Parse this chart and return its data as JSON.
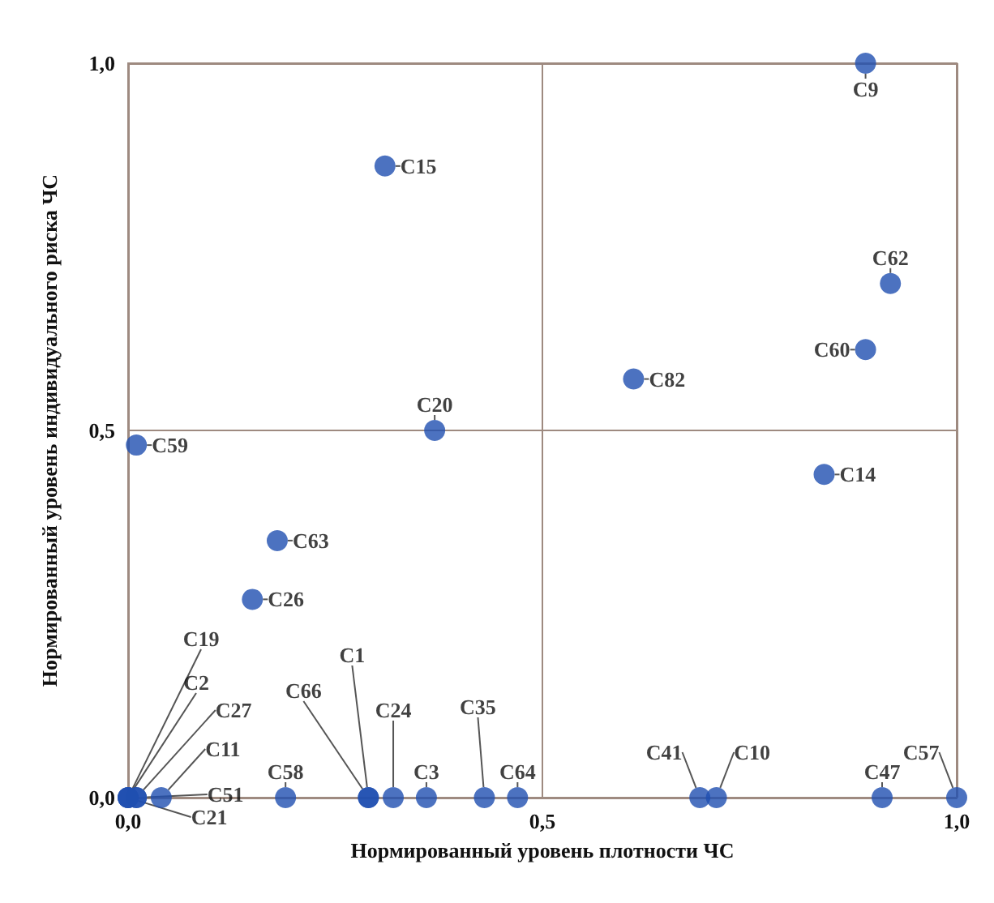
{
  "chart_data": {
    "type": "scatter",
    "xlabel": "Нормированный уровень плотности ЧС",
    "ylabel": "Нормированный уровень индивидуального риска ЧС",
    "xlim": [
      0,
      1
    ],
    "ylim": [
      0,
      1
    ],
    "xticks": [
      {
        "value": 0,
        "label": "0,0"
      },
      {
        "value": 0.5,
        "label": "0,5"
      },
      {
        "value": 1,
        "label": "1,0"
      }
    ],
    "yticks": [
      {
        "value": 0,
        "label": "0,0"
      },
      {
        "value": 0.5,
        "label": "0,5"
      },
      {
        "value": 1,
        "label": "1,0"
      }
    ],
    "grid": true,
    "marker": "circle",
    "series": [
      {
        "color": "#1f4fb0",
        "x": [
          0.89,
          0.92,
          0.89,
          0.61,
          0.84,
          0.31,
          0.37,
          0.01,
          0.18,
          0.15,
          0,
          0,
          0.01,
          0.04,
          0.01,
          0,
          0.19,
          0.29,
          0.29,
          0.32,
          0.36,
          0.43,
          0.47,
          0.69,
          0.71,
          0.91,
          1.0
        ],
        "values": [
          1.0,
          0.7,
          0.61,
          0.57,
          0.44,
          0.86,
          0.5,
          0.48,
          0.35,
          0.27,
          0,
          0,
          0,
          0,
          0,
          0,
          0,
          0,
          0,
          0,
          0,
          0,
          0,
          0,
          0,
          0,
          0
        ],
        "value_labels": [
          "C9",
          "C62",
          "C60",
          "C82",
          "C14",
          "C15",
          "C20",
          "C59",
          "C63",
          "C26",
          "C19",
          "C2",
          "C27",
          "C11",
          "C51",
          "C21",
          "C58",
          "C1",
          "C66",
          "C24",
          "C3",
          "C35",
          "C64",
          "C41",
          "C10",
          "C47",
          "C57"
        ]
      }
    ]
  }
}
